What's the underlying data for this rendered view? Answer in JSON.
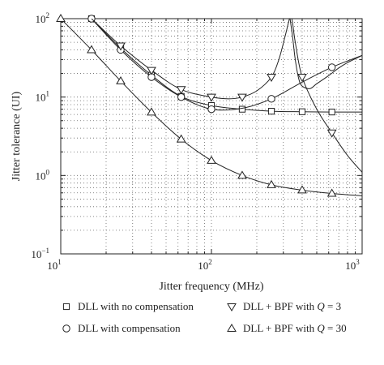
{
  "chart_data": {
    "type": "line",
    "x_scale": "log",
    "y_scale": "log",
    "xlabel": "Jitter frequency (MHz)",
    "ylabel": "Jitter tolerance (UI)",
    "xlim": [
      10,
      1000
    ],
    "ylim": [
      0.1,
      100
    ],
    "grid": true,
    "grid_style": "dotted",
    "legend_position": "bottom",
    "x_ticks": [
      {
        "value": 10,
        "base": "10",
        "exp": "1"
      },
      {
        "value": 100,
        "base": "10",
        "exp": "2"
      },
      {
        "value": 1000,
        "base": "10",
        "exp": "3"
      }
    ],
    "y_ticks": [
      {
        "value": 0.1,
        "base": "10",
        "exp": "−1"
      },
      {
        "value": 1,
        "base": "10",
        "exp": "0"
      },
      {
        "value": 10,
        "base": "10",
        "exp": "1"
      },
      {
        "value": 100,
        "base": "10",
        "exp": "2"
      }
    ],
    "series": [
      {
        "name": "DLL with no compensation",
        "marker": "square",
        "x": [
          16,
          25,
          40,
          63,
          100,
          160,
          250,
          400,
          630,
          1000
        ],
        "y": [
          100,
          42,
          19,
          10.2,
          7.8,
          7.0,
          6.6,
          6.5,
          6.45,
          6.45
        ],
        "marker_x": [
          16,
          25,
          40,
          63,
          100,
          160,
          250,
          400,
          630
        ]
      },
      {
        "name": "DLL with compensation",
        "marker": "circle",
        "x": [
          16,
          25,
          40,
          63,
          100,
          160,
          250,
          400,
          630,
          1000
        ],
        "y": [
          100,
          40,
          18,
          10,
          7,
          7.2,
          9.5,
          15.5,
          24,
          34
        ],
        "marker_x": [
          16,
          25,
          40,
          63,
          100,
          250,
          630
        ]
      },
      {
        "name": "DLL + BPF with Q = 3",
        "marker": "triangle-down",
        "x": [
          16,
          25,
          40,
          63,
          100,
          130,
          160,
          200,
          250,
          280,
          305,
          325,
          335,
          345,
          360,
          400,
          500,
          630,
          800,
          1000
        ],
        "y": [
          100,
          45,
          22,
          12.5,
          10,
          9.5,
          10,
          12,
          18,
          30,
          55,
          90,
          110,
          90,
          50,
          18,
          7,
          3.5,
          1.8,
          1.1
        ],
        "marker_x": [
          25,
          40,
          63,
          100,
          160,
          250,
          400,
          630
        ]
      },
      {
        "name": "DLL + BPF with Q = 30",
        "marker": "triangle-up",
        "x": [
          10,
          16,
          25,
          40,
          63,
          100,
          160,
          250,
          400,
          630,
          1000
        ],
        "y": [
          100,
          40,
          16,
          6.4,
          2.9,
          1.55,
          1.0,
          0.76,
          0.65,
          0.59,
          0.55
        ],
        "marker_x": [
          10,
          16,
          25,
          40,
          63,
          100,
          160,
          250,
          400,
          630
        ]
      },
      {
        "name": "",
        "marker": "none",
        "x": [
          330,
          345,
          360,
          380,
          400,
          450,
          500,
          600,
          700,
          800,
          1000
        ],
        "y": [
          110,
          60,
          30,
          17,
          13.8,
          12.8,
          14.8,
          18.8,
          23.5,
          27.5,
          34
        ],
        "marker_x": []
      }
    ],
    "legend": [
      {
        "label": "DLL with no compensation",
        "marker": "square",
        "series_index": 0
      },
      {
        "label": "DLL + BPF with ",
        "label_var": "Q",
        "label_suffix": " = 3",
        "marker": "triangle-down",
        "series_index": 2
      },
      {
        "label": "DLL with compensation",
        "marker": "circle",
        "series_index": 1
      },
      {
        "label": "DLL + BPF with ",
        "label_var": "Q",
        "label_suffix": " = 30",
        "marker": "triangle-up",
        "series_index": 3
      }
    ]
  }
}
